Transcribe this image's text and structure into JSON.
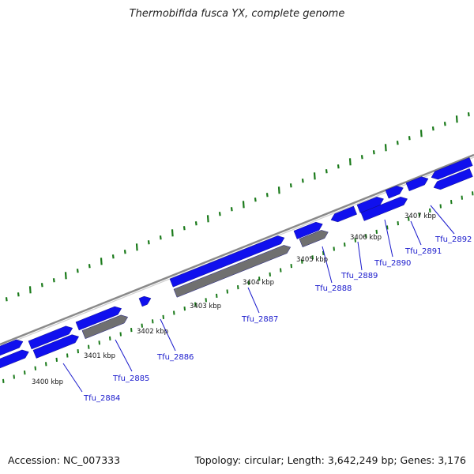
{
  "title": "Thermobifida fusca YX, complete genome",
  "footer": {
    "accession": "Accession: NC_007333",
    "summary": "Topology: circular; Length: 3,642,249 bp; Genes: 3,176"
  },
  "colors": {
    "gene_forward": "#1010ee",
    "gene_other": "#707070",
    "backbone": "#8a8a8a",
    "gc_ticks": "#1a7a1a",
    "label": "#1a1acc"
  },
  "kbp_labels": [
    "3400 kbp",
    "3401 kbp",
    "3402 kbp",
    "3403 kbp",
    "3404 kbp",
    "3405 kbp",
    "3406 kbp",
    "3407 kbp"
  ],
  "genes": [
    {
      "name": "Tfu_2884"
    },
    {
      "name": "Tfu_2885"
    },
    {
      "name": "Tfu_2886"
    },
    {
      "name": "Tfu_2887"
    },
    {
      "name": "Tfu_2888"
    },
    {
      "name": "Tfu_2889"
    },
    {
      "name": "Tfu_2890"
    },
    {
      "name": "Tfu_2891"
    },
    {
      "name": "Tfu_2892"
    }
  ]
}
